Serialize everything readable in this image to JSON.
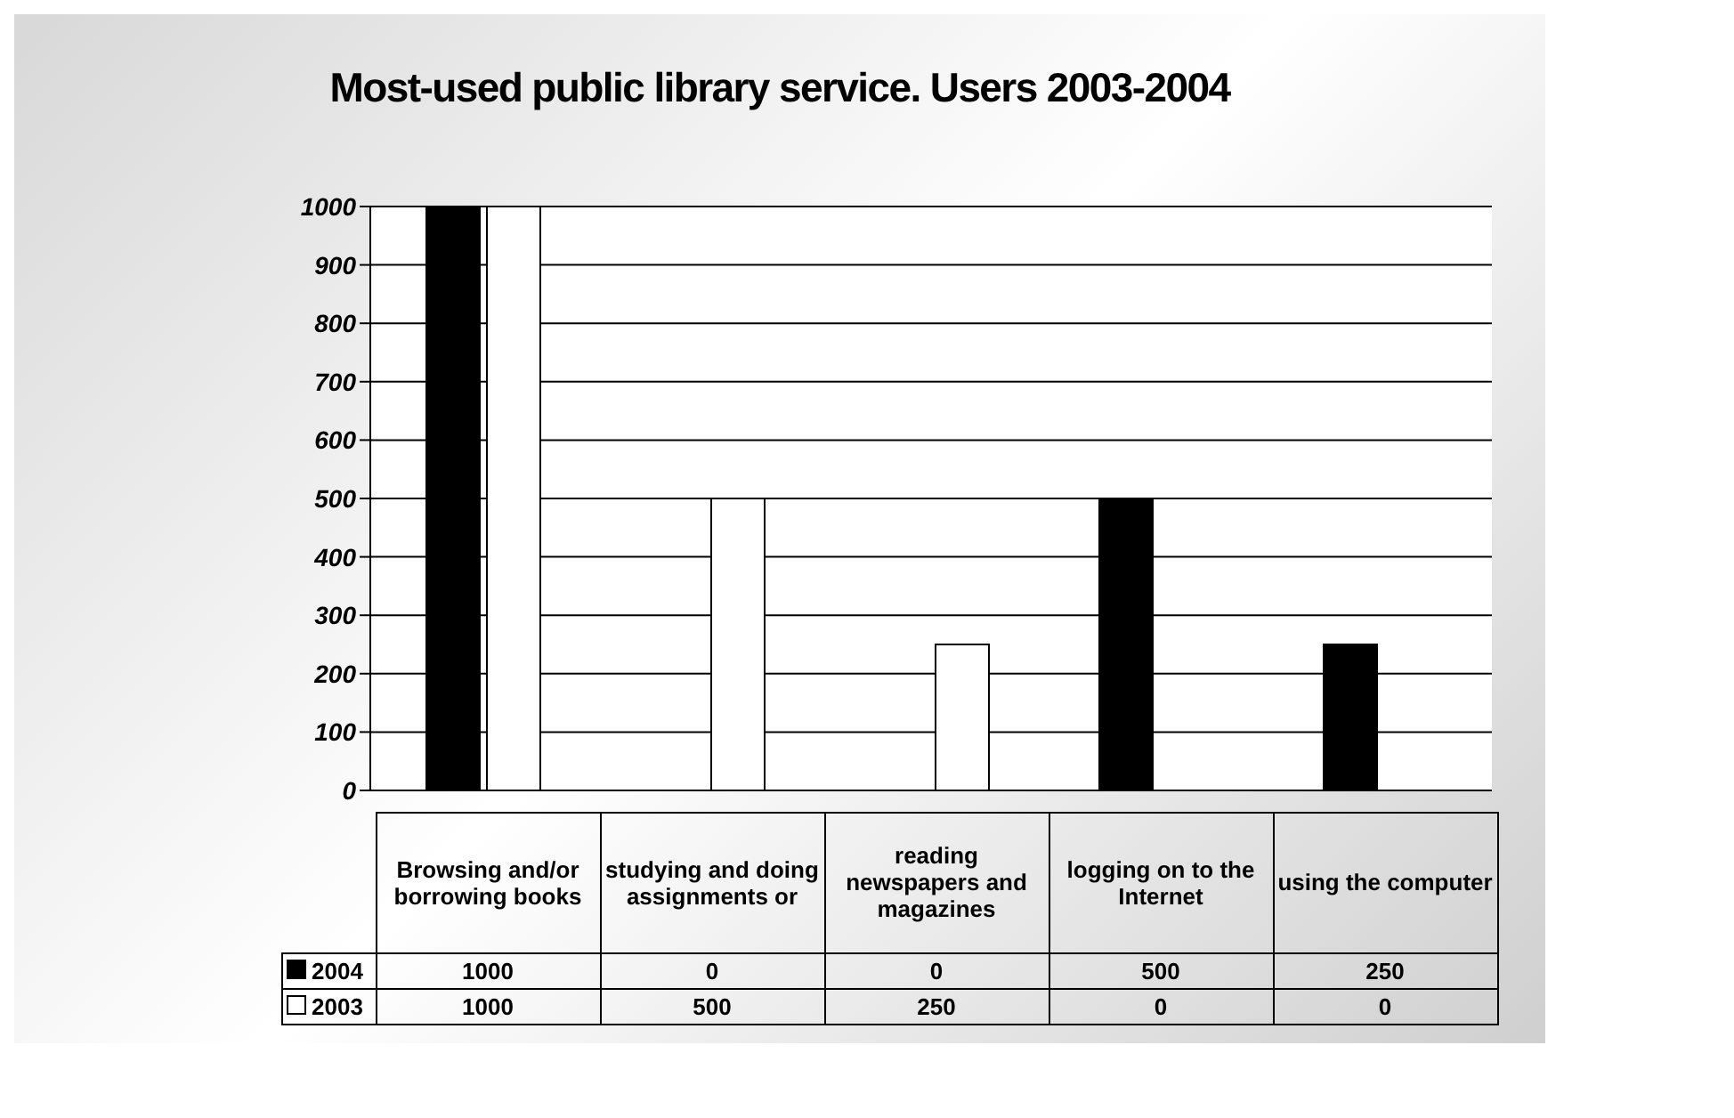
{
  "chart_data": {
    "type": "bar",
    "title": "Most-used public library service. Users 2003-2004",
    "categories": [
      "Browsing and/or borrowing books",
      "studying and doing assignments or",
      "reading newspapers and magazines",
      "logging on to the Internet",
      "using the computer"
    ],
    "series": [
      {
        "name": "2004",
        "color": "#000000",
        "values": [
          1000,
          0,
          0,
          500,
          250
        ]
      },
      {
        "name": "2003",
        "color": "#ffffff",
        "values": [
          1000,
          500,
          250,
          0,
          0
        ]
      }
    ],
    "ylim": [
      0,
      1000
    ],
    "yticks": [
      0,
      100,
      200,
      300,
      400,
      500,
      600,
      700,
      800,
      900,
      1000
    ],
    "grid": "y",
    "legend": "bottom",
    "data_labels": true
  }
}
